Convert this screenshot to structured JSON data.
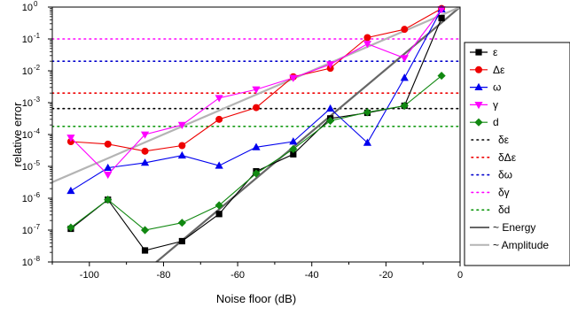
{
  "chart_data": {
    "type": "line",
    "xlabel": "Noise floor (dB)",
    "ylabel": "relative error",
    "xlim": [
      -110,
      0
    ],
    "ylim": [
      1e-08,
      1
    ],
    "yscale": "log",
    "x_ticks": [
      -100,
      -80,
      -60,
      -40,
      -20,
      0
    ],
    "x_tick_labels": [
      "-100",
      "-80",
      "-60",
      "-40",
      "-20",
      "0"
    ],
    "y_ticks": [
      1e-08,
      1e-07,
      1e-06,
      1e-05,
      0.0001,
      0.001,
      0.01,
      0.1,
      1
    ],
    "y_tick_labels": [
      {
        "base": "10",
        "exp": "-8"
      },
      {
        "base": "10",
        "exp": "-7"
      },
      {
        "base": "10",
        "exp": "-6"
      },
      {
        "base": "10",
        "exp": "-5"
      },
      {
        "base": "10",
        "exp": "-4"
      },
      {
        "base": "10",
        "exp": "-3"
      },
      {
        "base": "10",
        "exp": "-2"
      },
      {
        "base": "10",
        "exp": "-1"
      },
      {
        "base": "10",
        "exp": "0"
      }
    ],
    "grid": false,
    "legend_position": "right",
    "x": [
      -105,
      -95,
      -85,
      -75,
      -65,
      -55,
      -45,
      -35,
      -25,
      -15,
      -5
    ],
    "series": [
      {
        "name": "ε",
        "color": "#000000",
        "marker": "square",
        "values": [
          1.1e-07,
          9e-07,
          2.3e-08,
          4.5e-08,
          3.2e-07,
          7e-06,
          2.4e-05,
          0.00032,
          0.00048,
          0.0008,
          0.45
        ]
      },
      {
        "name": "Δε",
        "color": "#ee0000",
        "marker": "circle",
        "values": [
          6e-05,
          5e-05,
          3e-05,
          4.5e-05,
          0.0003,
          0.0007,
          0.0065,
          0.012,
          0.11,
          0.2,
          0.9
        ]
      },
      {
        "name": "ω",
        "color": "#0000ee",
        "marker": "triangle-up",
        "values": [
          1.7e-06,
          9e-06,
          1.3e-05,
          2.2e-05,
          1.05e-05,
          4e-05,
          6e-05,
          0.00065,
          5.5e-05,
          0.006,
          0.85
        ]
      },
      {
        "name": "γ",
        "color": "#ff00ff",
        "marker": "triangle-down",
        "values": [
          8e-05,
          5.5e-06,
          0.0001,
          0.0002,
          0.0014,
          0.0026,
          0.006,
          0.016,
          0.07,
          0.025,
          0.85
        ]
      },
      {
        "name": "d",
        "color": "#118811",
        "marker": "diamond",
        "values": [
          1.2e-07,
          9e-07,
          1e-07,
          1.7e-07,
          6e-07,
          6e-06,
          3.5e-05,
          0.00027,
          0.0005,
          0.0008,
          0.007
        ]
      }
    ],
    "reference_lines": [
      {
        "name": "δε",
        "color": "#000000",
        "style": "dotted",
        "y": 0.00065
      },
      {
        "name": "δΔε",
        "color": "#ee0000",
        "style": "dotted",
        "y": 0.002
      },
      {
        "name": "δω",
        "color": "#0000cc",
        "style": "dotted",
        "y": 0.02
      },
      {
        "name": "δγ",
        "color": "#ff00ff",
        "style": "dotted",
        "y": 0.1
      },
      {
        "name": "δd",
        "color": "#119911",
        "style": "dotted",
        "y": 0.00018
      }
    ],
    "trend_lines": [
      {
        "name": "~ Energy",
        "color": "#666666",
        "x": [
          -85,
          0
        ],
        "y": [
          5e-09,
          1
        ]
      },
      {
        "name": "~ Amplitude",
        "color": "#b4b4b4",
        "x": [
          -110,
          0
        ],
        "y": [
          3.2e-06,
          1
        ]
      }
    ]
  }
}
